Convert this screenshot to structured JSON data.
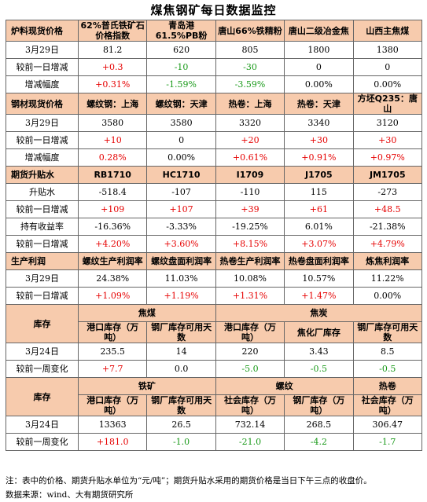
{
  "title": "煤焦钢矿每日数据监控",
  "sections": {
    "s1": {
      "header": [
        "炉料现货价格",
        "62%普氏铁矿石价格指数",
        "青岛港61.5%PB粉",
        "唐山66%铁精粉",
        "唐山二级冶金焦",
        "山西主焦煤"
      ],
      "r1": [
        "3月29日",
        "81.2",
        "620",
        "805",
        "1800",
        "1380"
      ],
      "r2": [
        "较前一日增减",
        "+0.3",
        "-10",
        "-30",
        "0",
        "0"
      ],
      "r3": [
        "增减幅度",
        "+0.31%",
        "-1.59%",
        "-3.59%",
        "0.00%",
        "0.00%"
      ]
    },
    "s2": {
      "header": [
        "钢材现货价格",
        "螺纹钢：上海",
        "螺纹钢：天津",
        "热卷：上海",
        "热卷：天津",
        "方坯Q235：唐山"
      ],
      "r1": [
        "3月29日",
        "3580",
        "3580",
        "3320",
        "3340",
        "3120"
      ],
      "r2": [
        "较前一日增减",
        "+10",
        "0",
        "+20",
        "+30",
        "+30"
      ],
      "r3": [
        "增减幅度",
        "0.28%",
        "0.00%",
        "+0.61%",
        "+0.91%",
        "+0.97%"
      ]
    },
    "s3": {
      "header": [
        "期货升贴水",
        "RB1710",
        "HC1710",
        "I1709",
        "J1705",
        "JM1705"
      ],
      "r1": [
        "升贴水",
        "-518.4",
        "-107",
        "-110",
        "115",
        "-273"
      ],
      "r2": [
        "较前一日增减",
        "+109",
        "+107",
        "+39",
        "+61",
        "+48.5"
      ],
      "r3": [
        "持有收益率",
        "-16.36%",
        "-3.33%",
        "-19.25%",
        "6.01%",
        "-21.38%"
      ],
      "r4": [
        "较前一日增减",
        "+4.20%",
        "+3.60%",
        "+8.15%",
        "+3.07%",
        "+4.79%"
      ]
    },
    "s4": {
      "header": [
        "生产利润",
        "螺纹生产利润率",
        "螺纹盘面利润率",
        "热卷生产利润率",
        "热卷盘面利润率",
        "炼焦利润率"
      ],
      "r1": [
        "3月29日",
        "24.38%",
        "11.03%",
        "10.08%",
        "10.57%",
        "11.22%"
      ],
      "r2": [
        "较前一日增减",
        "+1.09%",
        "+1.19%",
        "+1.31%",
        "+1.47%",
        "0.00%"
      ]
    },
    "s5": {
      "label": "库存",
      "group1": "焦煤",
      "group2": "焦炭",
      "header": [
        "港口库存（万吨）",
        "钢厂库存可用天数",
        "港口库存（万吨）",
        "焦化厂库存",
        "钢厂库存可用天数"
      ],
      "r1": [
        "3月24日",
        "235.5",
        "14",
        "220",
        "3.43",
        "8.5"
      ],
      "r2": [
        "较前一周变化",
        "+7.7",
        "0.0",
        "-5.0",
        "-0.5",
        "-0.5"
      ]
    },
    "s6": {
      "label": "库存",
      "group1": "铁矿",
      "group2": "螺纹",
      "group3": "热卷",
      "header": [
        "港口库存（万吨）",
        "钢厂库存可用天数",
        "社会库存（万吨）",
        "钢厂库存（万吨）",
        "社会库存（万吨）"
      ],
      "r1": [
        "3月24日",
        "13363",
        "26.5",
        "732.14",
        "268.5",
        "306.47"
      ],
      "r2": [
        "较前一周变化",
        "+181.0",
        "-1.0",
        "-21.0",
        "-4.2",
        "-1.7"
      ]
    }
  },
  "note": "注：表中的价格、期货升贴水单位为“元/吨”；期货升贴水采用的期货价格是当日下午三点的收盘价。",
  "source": "数据来源：wind、大有期货研究所",
  "colors": {
    "section_bg": "#f7cbad",
    "up": "#e60000",
    "down": "#1a9a1a"
  }
}
